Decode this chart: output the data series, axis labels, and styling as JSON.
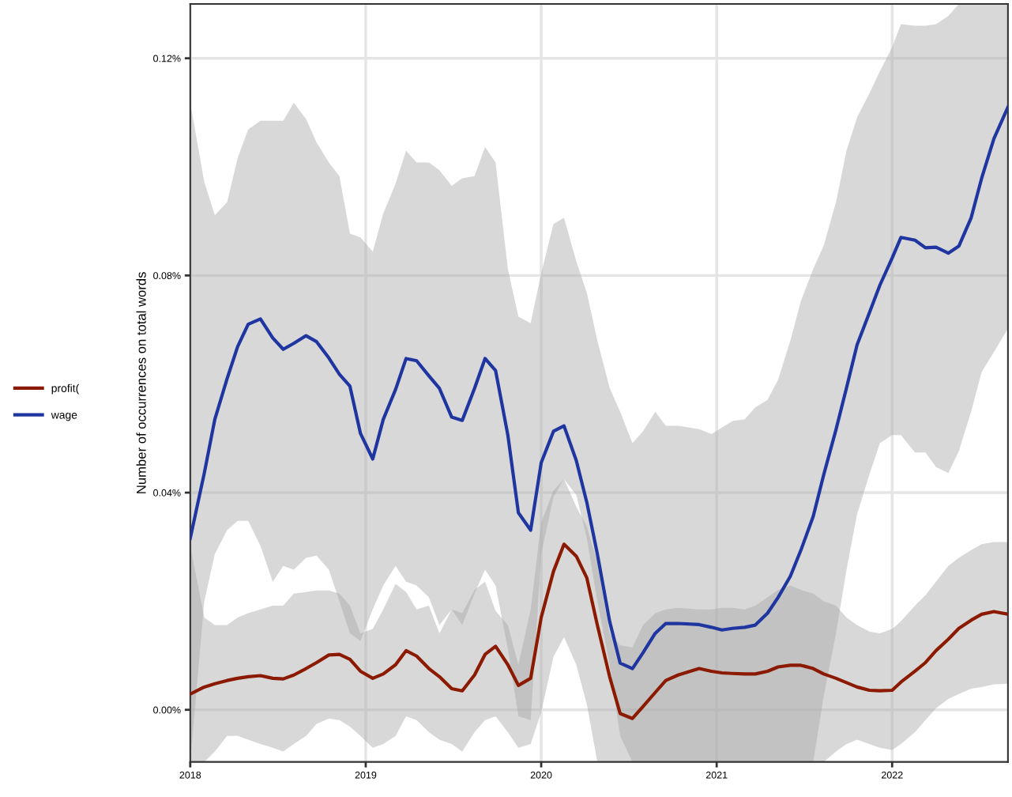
{
  "chart_data": {
    "type": "line",
    "ylabel": "Number of occurrences on total words",
    "x": [
      2018.0,
      2018.08,
      2018.14,
      2018.21,
      2018.27,
      2018.33,
      2018.4,
      2018.47,
      2018.53,
      2018.59,
      2018.66,
      2018.72,
      2018.79,
      2018.85,
      2018.91,
      2018.97,
      2019.04,
      2019.1,
      2019.17,
      2019.23,
      2019.29,
      2019.36,
      2019.42,
      2019.49,
      2019.55,
      2019.62,
      2019.68,
      2019.74,
      2019.81,
      2019.87,
      2019.94,
      2020.0,
      2020.07,
      2020.13,
      2020.2,
      2020.26,
      2020.32,
      2020.39,
      2020.45,
      2020.52,
      2020.58,
      2020.65,
      2020.71,
      2020.78,
      2020.9,
      2020.97,
      2021.03,
      2021.09,
      2021.16,
      2021.22,
      2021.29,
      2021.35,
      2021.42,
      2021.48,
      2021.55,
      2021.61,
      2021.68,
      2021.74,
      2021.8,
      2021.87,
      2021.93,
      2022.0,
      2022.05,
      2022.13,
      2022.19,
      2022.25,
      2022.32,
      2022.38,
      2022.45,
      2022.51,
      2022.58,
      2022.66
    ],
    "series": [
      {
        "name": "profit(",
        "color": "#8b1a00",
        "values": [
          0.0029,
          0.0042,
          0.0048,
          0.0054,
          0.0058,
          0.0061,
          0.0063,
          0.0058,
          0.0057,
          0.0064,
          0.0076,
          0.0087,
          0.0101,
          0.0102,
          0.0093,
          0.0071,
          0.0058,
          0.0066,
          0.0083,
          0.0109,
          0.0099,
          0.0076,
          0.0061,
          0.0039,
          0.0035,
          0.0064,
          0.0102,
          0.0117,
          0.0083,
          0.0045,
          0.0058,
          0.017,
          0.0255,
          0.0305,
          0.0283,
          0.0243,
          0.0156,
          0.0061,
          -0.0007,
          -0.0016,
          0.0006,
          0.0032,
          0.0054,
          0.0064,
          0.0076,
          0.0071,
          0.0068,
          0.0067,
          0.0066,
          0.0066,
          0.0071,
          0.0079,
          0.0082,
          0.0082,
          0.0076,
          0.0066,
          0.0058,
          0.005,
          0.0042,
          0.0036,
          0.0035,
          0.0036,
          0.0051,
          0.0071,
          0.0087,
          0.0109,
          0.013,
          0.015,
          0.0165,
          0.0176,
          0.0181,
          0.0176
        ],
        "upper": [
          0.0302,
          0.017,
          0.0156,
          0.0156,
          0.017,
          0.0178,
          0.0185,
          0.0192,
          0.0192,
          0.0214,
          0.0217,
          0.022,
          0.022,
          0.0214,
          0.0192,
          0.0141,
          0.0149,
          0.0185,
          0.0232,
          0.0217,
          0.0185,
          0.0192,
          0.0141,
          0.0185,
          0.0178,
          0.0221,
          0.0236,
          0.0182,
          0.0156,
          0.0083,
          0.0185,
          0.0345,
          0.0404,
          0.0425,
          0.0374,
          0.0338,
          0.0272,
          0.0141,
          0.0119,
          0.0115,
          0.0156,
          0.0178,
          0.0185,
          0.0188,
          0.0185,
          0.0185,
          0.0188,
          0.0188,
          0.0185,
          0.0192,
          0.0207,
          0.0221,
          0.0229,
          0.0221,
          0.0214,
          0.02,
          0.0192,
          0.017,
          0.0156,
          0.0144,
          0.0141,
          0.0149,
          0.0163,
          0.0192,
          0.0211,
          0.0236,
          0.0265,
          0.028,
          0.0294,
          0.0305,
          0.0309,
          0.0309
        ],
        "lower": [
          -0.0096,
          -0.0096,
          -0.0077,
          -0.0048,
          -0.0048,
          -0.0055,
          -0.0063,
          -0.007,
          -0.0077,
          -0.0063,
          -0.0048,
          -0.0026,
          -0.0016,
          -0.0019,
          -0.0031,
          -0.0048,
          -0.007,
          -0.0063,
          -0.0048,
          -0.0012,
          -0.0019,
          -0.0041,
          -0.0055,
          -0.0063,
          -0.0077,
          -0.0041,
          -0.0019,
          -0.0012,
          -0.0041,
          -0.007,
          -0.0063,
          -0.0004,
          0.0098,
          0.0134,
          0.0083,
          0.001,
          -0.0096,
          -0.0096,
          -0.0096,
          -0.0096,
          -0.0096,
          -0.0096,
          -0.0096,
          -0.0096,
          -0.0096,
          -0.0096,
          -0.0096,
          -0.0096,
          -0.0096,
          -0.0096,
          -0.0096,
          -0.0096,
          -0.0096,
          -0.0096,
          -0.0096,
          -0.0096,
          -0.0077,
          -0.0063,
          -0.0055,
          -0.0063,
          -0.007,
          -0.0074,
          -0.0063,
          -0.0041,
          -0.0019,
          0.0003,
          0.002,
          0.0029,
          0.0039,
          0.0042,
          0.0047,
          0.0048
        ]
      },
      {
        "name": "wage",
        "color": "#1f35a0",
        "values": [
          0.0316,
          0.0436,
          0.0535,
          0.061,
          0.0669,
          0.071,
          0.072,
          0.0685,
          0.0664,
          0.0675,
          0.0689,
          0.0678,
          0.0648,
          0.0618,
          0.0596,
          0.0509,
          0.0462,
          0.0535,
          0.059,
          0.0647,
          0.0643,
          0.0615,
          0.0592,
          0.0539,
          0.0533,
          0.0592,
          0.0647,
          0.0625,
          0.0506,
          0.0363,
          0.0331,
          0.0455,
          0.0513,
          0.0523,
          0.0459,
          0.0382,
          0.0287,
          0.0163,
          0.0086,
          0.0076,
          0.0105,
          0.0141,
          0.0159,
          0.0159,
          0.0157,
          0.0152,
          0.0147,
          0.015,
          0.0152,
          0.0156,
          0.0178,
          0.0207,
          0.0246,
          0.0294,
          0.0356,
          0.0433,
          0.0516,
          0.0593,
          0.0672,
          0.0731,
          0.0782,
          0.0832,
          0.087,
          0.0865,
          0.0851,
          0.0852,
          0.0841,
          0.0854,
          0.0906,
          0.0979,
          0.1052,
          0.111
        ],
        "upper": [
          0.1118,
          0.0972,
          0.0911,
          0.0935,
          0.1016,
          0.1069,
          0.1085,
          0.1085,
          0.1085,
          0.1118,
          0.1088,
          0.1045,
          0.1008,
          0.0983,
          0.0877,
          0.087,
          0.0844,
          0.0914,
          0.0969,
          0.103,
          0.1008,
          0.1008,
          0.0994,
          0.0965,
          0.0979,
          0.0983,
          0.1037,
          0.1008,
          0.0812,
          0.0724,
          0.0712,
          0.0804,
          0.0895,
          0.0906,
          0.0826,
          0.0768,
          0.068,
          0.0593,
          0.0549,
          0.0491,
          0.0513,
          0.0549,
          0.0523,
          0.0523,
          0.0517,
          0.0508,
          0.052,
          0.0532,
          0.0535,
          0.0557,
          0.0571,
          0.0608,
          0.068,
          0.0753,
          0.0812,
          0.0855,
          0.0935,
          0.103,
          0.1091,
          0.1135,
          0.1176,
          0.122,
          0.1263,
          0.126,
          0.126,
          0.1263,
          0.1278,
          0.13,
          0.13,
          0.13,
          0.13,
          0.13
        ],
        "lower": [
          -0.0096,
          0.02,
          0.0287,
          0.0331,
          0.0348,
          0.0348,
          0.0302,
          0.0236,
          0.0265,
          0.0258,
          0.028,
          0.0284,
          0.0258,
          0.02,
          0.0141,
          0.0127,
          0.0185,
          0.0229,
          0.0265,
          0.0236,
          0.0229,
          0.0207,
          0.0156,
          0.0185,
          0.0156,
          0.0214,
          0.0258,
          0.0229,
          0.0112,
          -0.0012,
          -0.0019,
          0.0287,
          0.0392,
          0.0425,
          0.0396,
          0.0316,
          0.02,
          0.0083,
          -0.0048,
          -0.0096,
          -0.0096,
          -0.0096,
          -0.0096,
          -0.0096,
          -0.0096,
          -0.0096,
          -0.0096,
          -0.0096,
          -0.0096,
          -0.0096,
          -0.0096,
          -0.0096,
          -0.0096,
          -0.0096,
          -0.0096,
          0.0025,
          0.0141,
          0.0258,
          0.036,
          0.0433,
          0.0491,
          0.0506,
          0.0506,
          0.0474,
          0.0474,
          0.0447,
          0.0436,
          0.0476,
          0.0549,
          0.0622,
          0.0659,
          0.0702
        ]
      }
    ],
    "xlim": [
      2018,
      2022.66
    ],
    "xticks": [
      2018,
      2019,
      2020,
      2021,
      2022
    ],
    "ylim": [
      -0.0096,
      0.13
    ],
    "yticks": [
      {
        "value": 0,
        "label": "0.00%"
      },
      {
        "value": 0.04,
        "label": "0.04%"
      },
      {
        "value": 0.08,
        "label": "0.08%"
      },
      {
        "value": 0.12,
        "label": "0.12%"
      }
    ],
    "grid": true,
    "legend": "left",
    "line_style": "solid",
    "marker": "none"
  }
}
